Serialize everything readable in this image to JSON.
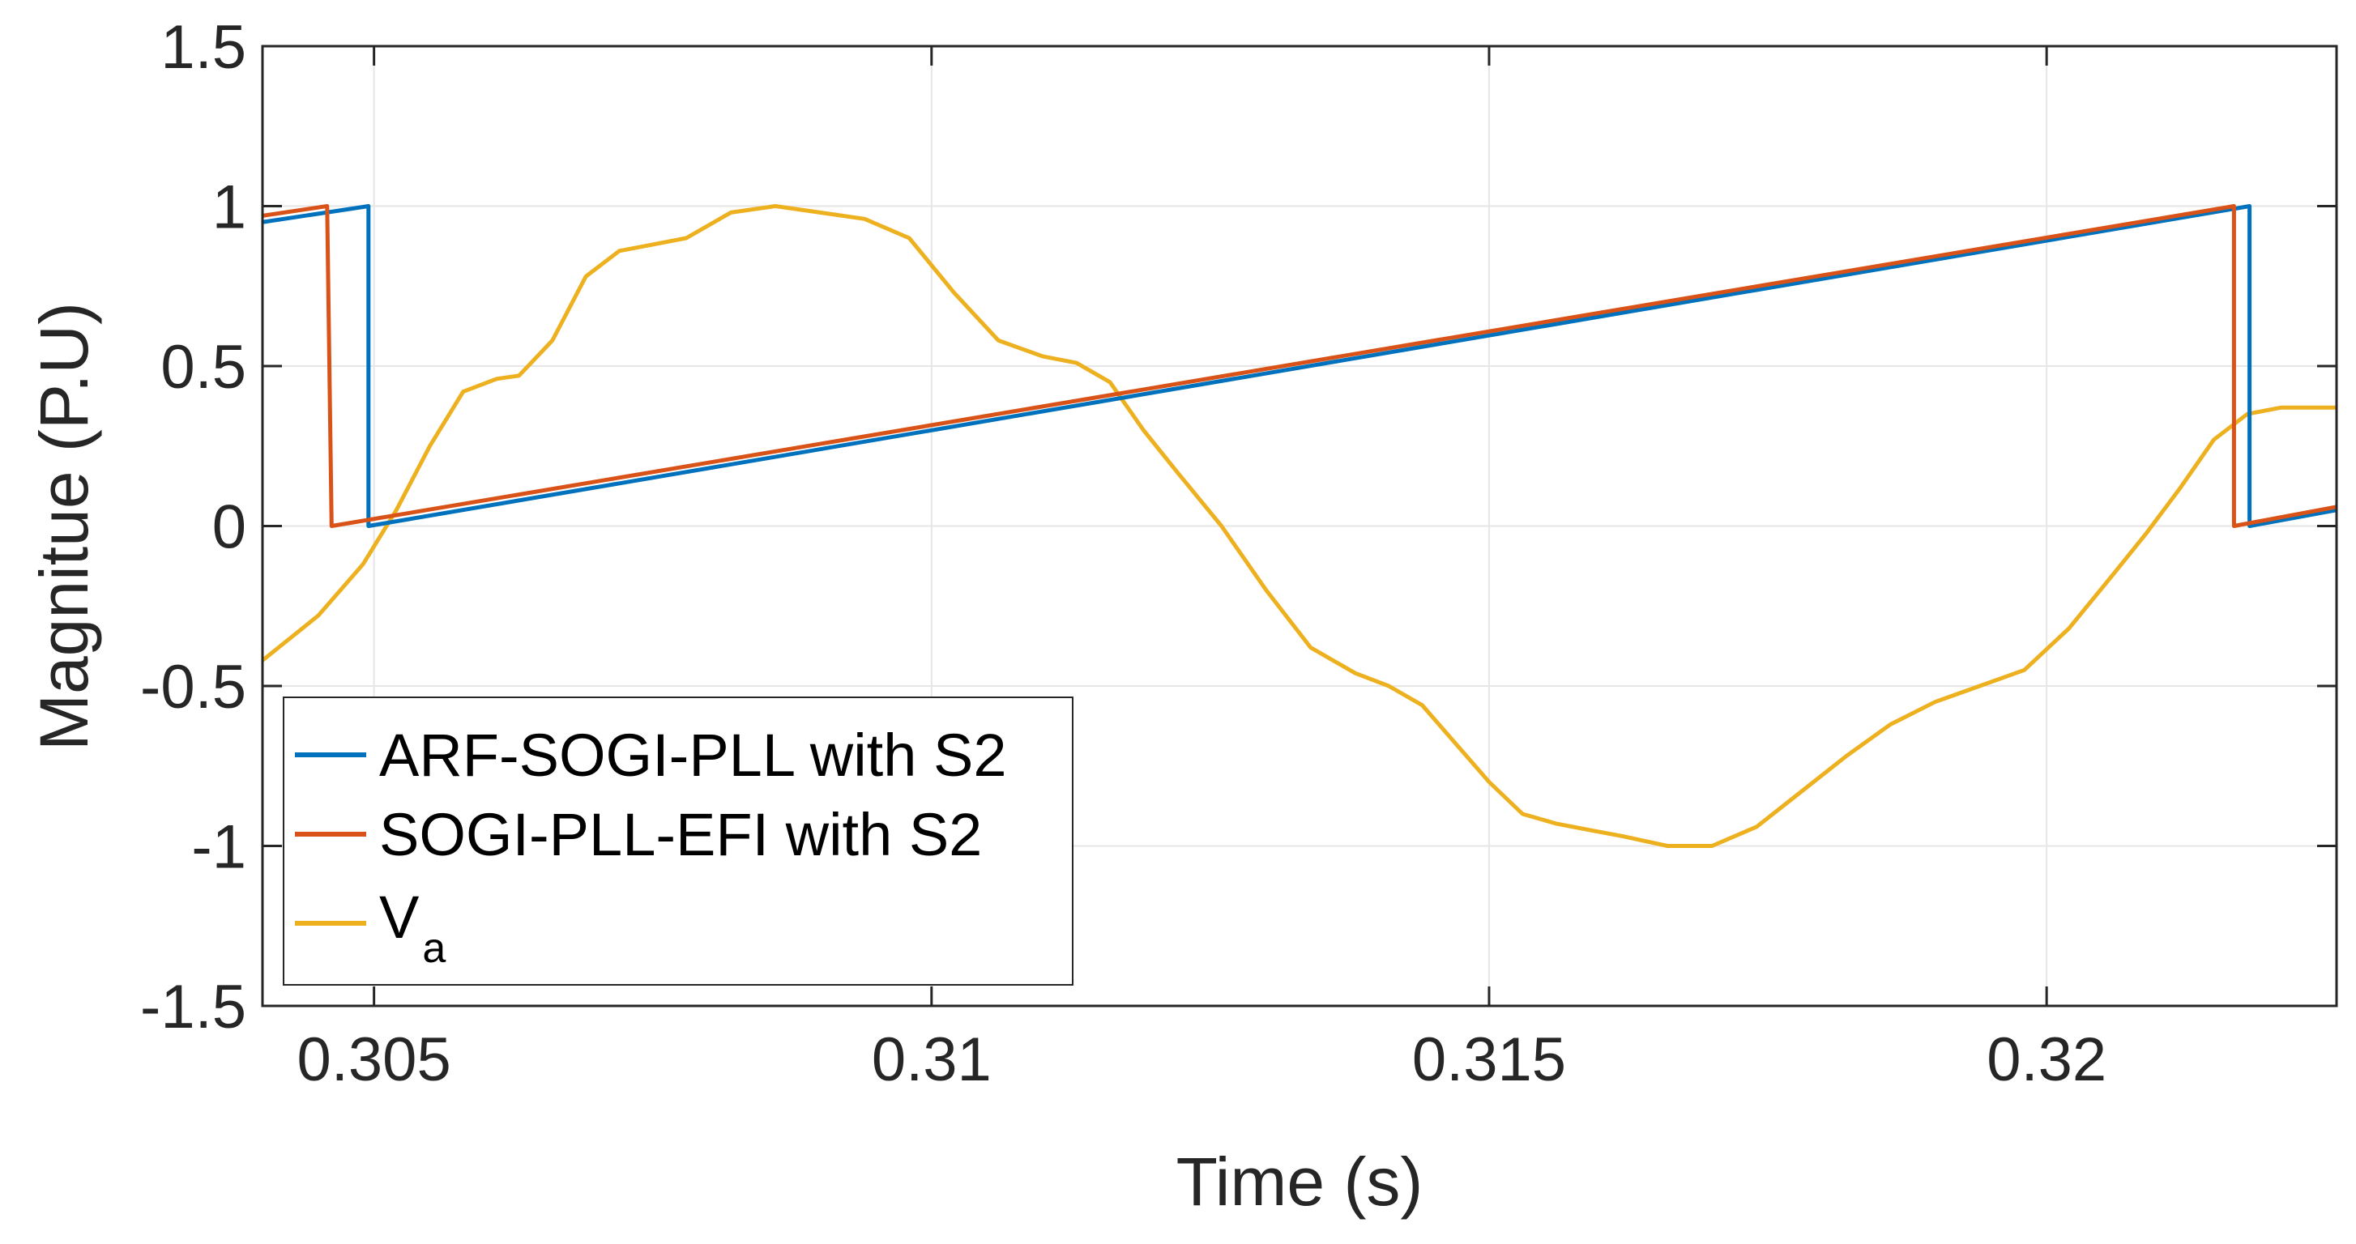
{
  "chart_data": {
    "type": "line",
    "title": "",
    "xlabel": "Time (s)",
    "ylabel": "Magnitue (P.U)",
    "xlim": [
      0.304,
      0.3226
    ],
    "ylim": [
      -1.5,
      1.5
    ],
    "grid": true,
    "legend_position": "bottom-left",
    "xticks": [
      0.305,
      0.31,
      0.315,
      0.32
    ],
    "xtick_labels": [
      "0.305",
      "0.31",
      "0.315",
      "0.32"
    ],
    "yticks": [
      1.5,
      1,
      0.5,
      0,
      -0.5,
      -1,
      -1.5
    ],
    "ytick_labels": [
      "1.5",
      "1",
      "0.5",
      "0",
      "-0.5",
      "-1",
      "-1.5"
    ],
    "series": [
      {
        "name": "ARF-SOGI-PLL with S2",
        "name_main": "ARF-SOGI-PLL with S2",
        "color": "#0072BD",
        "x": [
          0.304,
          0.30495,
          0.30495,
          0.32182,
          0.32182,
          0.3226
        ],
        "y": [
          0.95,
          1.0,
          0.0,
          1.0,
          0.0,
          0.05
        ]
      },
      {
        "name": "SOGI-PLL-EFI with S2",
        "name_main": "SOGI-PLL-EFI with S2",
        "color": "#D95319",
        "x": [
          0.304,
          0.30458,
          0.30458,
          0.30462,
          0.32168,
          0.32168,
          0.3226
        ],
        "y": [
          0.97,
          1.0,
          1.0,
          0.0,
          1.0,
          0.0,
          0.06
        ]
      },
      {
        "name": "Va",
        "name_main": "V",
        "name_sub": "a",
        "color": "#EDB120",
        "x": [
          0.304,
          0.3045,
          0.3049,
          0.3052,
          0.3055,
          0.3058,
          0.3061,
          0.3063,
          0.3066,
          0.3069,
          0.3072,
          0.3075,
          0.3078,
          0.3082,
          0.3086,
          0.309,
          0.3094,
          0.3098,
          0.3102,
          0.3106,
          0.311,
          0.3113,
          0.3116,
          0.3119,
          0.3122,
          0.3126,
          0.313,
          0.3134,
          0.3138,
          0.3141,
          0.3144,
          0.3147,
          0.315,
          0.3153,
          0.3156,
          0.3159,
          0.3162,
          0.3166,
          0.317,
          0.3174,
          0.3178,
          0.3182,
          0.3186,
          0.319,
          0.3194,
          0.3198,
          0.3202,
          0.3206,
          0.3209,
          0.3212,
          0.3215,
          0.3218,
          0.3221,
          0.3224,
          0.3226
        ],
        "y": [
          -0.42,
          -0.28,
          -0.12,
          0.05,
          0.25,
          0.42,
          0.46,
          0.47,
          0.58,
          0.78,
          0.86,
          0.88,
          0.9,
          0.98,
          1.0,
          0.98,
          0.96,
          0.9,
          0.73,
          0.58,
          0.53,
          0.51,
          0.45,
          0.3,
          0.17,
          0.0,
          -0.2,
          -0.38,
          -0.46,
          -0.5,
          -0.56,
          -0.68,
          -0.8,
          -0.9,
          -0.93,
          -0.95,
          -0.97,
          -1.0,
          -1.0,
          -0.94,
          -0.83,
          -0.72,
          -0.62,
          -0.55,
          -0.5,
          -0.45,
          -0.32,
          -0.15,
          -0.02,
          0.12,
          0.27,
          0.35,
          0.37,
          0.37,
          0.37
        ]
      }
    ]
  }
}
